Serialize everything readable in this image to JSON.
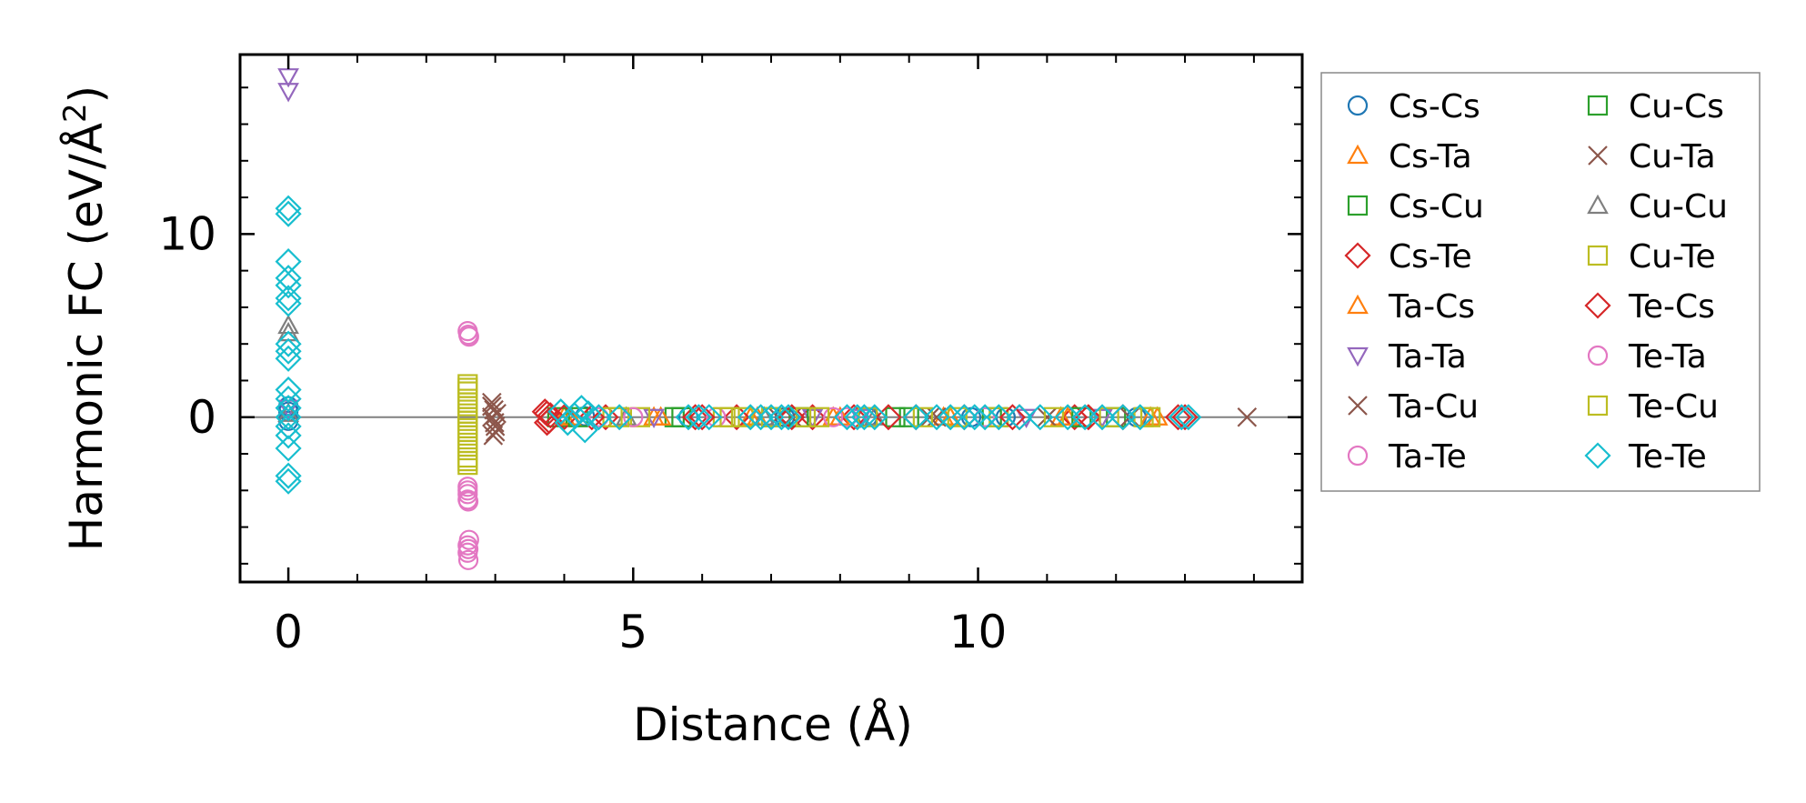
{
  "chart_data": {
    "type": "scatter",
    "xlabel": "Distance (Å)",
    "ylabel": "Harmonic FC (eV/Å²)",
    "xlim": [
      -0.7,
      14.7
    ],
    "ylim": [
      -9.0,
      19.8
    ],
    "x_ticks": [
      0,
      5,
      10
    ],
    "y_ticks": [
      0,
      10
    ],
    "x_tick_labels": [
      "0",
      "5",
      "10"
    ],
    "y_tick_labels": [
      "0",
      "10"
    ],
    "reference_line_y": 0,
    "grid": false,
    "legend": {
      "location": "outside-right",
      "columns": 2
    },
    "series": [
      {
        "name": "Cs-Cs",
        "marker": "circle",
        "color": "#1f77b4",
        "points": [
          [
            0,
            0.6
          ],
          [
            0,
            -0.2
          ],
          [
            0,
            0.3
          ],
          [
            4.3,
            0.05
          ],
          [
            5.8,
            0.0
          ],
          [
            7.2,
            0.0
          ],
          [
            8.4,
            0.0
          ],
          [
            9.9,
            0.0
          ],
          [
            10.4,
            0.0
          ],
          [
            12.3,
            0.0
          ]
        ]
      },
      {
        "name": "Cs-Ta",
        "marker": "triangle-up",
        "color": "#ff7f0e",
        "points": [
          [
            4.0,
            0.05
          ],
          [
            5.3,
            0.0
          ],
          [
            6.7,
            0.0
          ],
          [
            7.9,
            0.0
          ],
          [
            9.6,
            0.0
          ],
          [
            11.2,
            0.0
          ],
          [
            12.6,
            0.0
          ]
        ]
      },
      {
        "name": "Cs-Cu",
        "marker": "square",
        "color": "#2ca02c",
        "points": [
          [
            3.9,
            0.0
          ],
          [
            5.6,
            0.0
          ],
          [
            7.0,
            0.0
          ],
          [
            8.8,
            0.0
          ],
          [
            10.2,
            0.0
          ],
          [
            12.0,
            0.0
          ]
        ]
      },
      {
        "name": "Cs-Te",
        "marker": "diamond",
        "color": "#d62728",
        "points": [
          [
            3.72,
            0.3
          ],
          [
            3.75,
            -0.3
          ],
          [
            3.8,
            0.1
          ],
          [
            4.0,
            0.0
          ],
          [
            4.6,
            0.0
          ],
          [
            5.9,
            0.0
          ],
          [
            6.5,
            0.0
          ],
          [
            7.6,
            0.0
          ],
          [
            8.2,
            0.0
          ],
          [
            9.1,
            0.0
          ],
          [
            9.8,
            0.0
          ],
          [
            10.6,
            0.0
          ],
          [
            11.4,
            0.0
          ],
          [
            12.1,
            0.0
          ],
          [
            12.9,
            0.0
          ]
        ]
      },
      {
        "name": "Ta-Cs",
        "marker": "triangle-up",
        "color": "#ff7f0e",
        "points": [
          [
            4.1,
            0.0
          ],
          [
            5.4,
            0.0
          ],
          [
            6.8,
            0.0
          ],
          [
            8.0,
            0.0
          ],
          [
            9.5,
            0.0
          ],
          [
            11.3,
            0.0
          ],
          [
            12.5,
            0.0
          ]
        ]
      },
      {
        "name": "Ta-Ta",
        "marker": "triangle-down",
        "color": "#9467bd",
        "points": [
          [
            0,
            18.6
          ],
          [
            0,
            17.8
          ],
          [
            0,
            0.5
          ],
          [
            5.3,
            0.0
          ],
          [
            7.6,
            0.0
          ],
          [
            8.3,
            0.0
          ],
          [
            10.7,
            0.0
          ],
          [
            11.8,
            0.0
          ]
        ]
      },
      {
        "name": "Ta-Cu",
        "marker": "x",
        "color": "#8c564b",
        "points": [
          [
            2.95,
            0.8
          ],
          [
            2.98,
            0.4
          ],
          [
            2.95,
            0.0
          ],
          [
            3.0,
            -0.5
          ],
          [
            2.97,
            -1.0
          ],
          [
            3.02,
            0.2
          ],
          [
            7.1,
            0.0
          ],
          [
            9.3,
            0.0
          ],
          [
            11.0,
            0.0
          ],
          [
            13.9,
            0.0
          ]
        ]
      },
      {
        "name": "Ta-Te",
        "marker": "circle",
        "color": "#e377c2",
        "points": [
          [
            2.6,
            4.7
          ],
          [
            2.62,
            4.4
          ],
          [
            2.6,
            -3.8
          ],
          [
            2.6,
            -4.2
          ],
          [
            2.61,
            -4.6
          ],
          [
            2.62,
            -6.7
          ],
          [
            2.6,
            -7.0
          ],
          [
            2.6,
            -7.4
          ],
          [
            2.61,
            -7.8
          ],
          [
            4.5,
            0.0
          ],
          [
            6.2,
            0.0
          ],
          [
            7.9,
            0.0
          ],
          [
            10.1,
            0.0
          ]
        ]
      },
      {
        "name": "Cu-Cs",
        "marker": "square",
        "color": "#2ca02c",
        "points": [
          [
            4.2,
            0.0
          ],
          [
            5.7,
            0.0
          ],
          [
            7.4,
            0.0
          ],
          [
            9.0,
            0.0
          ],
          [
            11.5,
            0.0
          ]
        ]
      },
      {
        "name": "Cu-Ta",
        "marker": "x",
        "color": "#8c564b",
        "points": [
          [
            2.95,
            0.6
          ],
          [
            2.99,
            -0.3
          ],
          [
            3.0,
            -0.8
          ],
          [
            7.3,
            0.0
          ],
          [
            9.4,
            0.0
          ],
          [
            12.2,
            0.0
          ]
        ]
      },
      {
        "name": "Cu-Cu",
        "marker": "triangle-up",
        "color": "#7f7f7f",
        "points": [
          [
            0,
            5.0
          ],
          [
            0,
            4.6
          ],
          [
            0,
            0.2
          ],
          [
            4.9,
            0.0
          ],
          [
            6.9,
            0.0
          ],
          [
            8.5,
            0.0
          ]
        ]
      },
      {
        "name": "Cu-Te",
        "marker": "square",
        "color": "#bcbd22",
        "points": [
          [
            2.6,
            1.8
          ],
          [
            2.6,
            1.4
          ],
          [
            2.6,
            1.0
          ],
          [
            2.6,
            0.6
          ],
          [
            2.6,
            0.2
          ],
          [
            2.6,
            -0.2
          ],
          [
            2.6,
            -0.6
          ],
          [
            2.6,
            -1.0
          ],
          [
            2.6,
            -1.4
          ],
          [
            2.6,
            -1.8
          ],
          [
            2.6,
            -2.2
          ],
          [
            2.6,
            -2.6
          ],
          [
            4.7,
            0.0
          ],
          [
            5.1,
            0.0
          ],
          [
            6.3,
            0.0
          ],
          [
            6.6,
            0.0
          ],
          [
            7.0,
            0.0
          ],
          [
            7.7,
            0.0
          ],
          [
            8.4,
            0.0
          ],
          [
            9.2,
            0.0
          ],
          [
            10.3,
            0.0
          ],
          [
            11.1,
            0.0
          ],
          [
            12.4,
            0.0
          ],
          [
            12.5,
            0.0
          ]
        ]
      },
      {
        "name": "Te-Cs",
        "marker": "diamond",
        "color": "#d62728",
        "points": [
          [
            3.75,
            0.2
          ],
          [
            3.78,
            -0.2
          ],
          [
            4.4,
            0.0
          ],
          [
            6.0,
            0.0
          ],
          [
            7.3,
            0.0
          ],
          [
            8.7,
            0.0
          ],
          [
            10.5,
            0.0
          ],
          [
            11.6,
            0.0
          ],
          [
            13.0,
            0.0
          ]
        ]
      },
      {
        "name": "Te-Ta",
        "marker": "circle",
        "color": "#e377c2",
        "points": [
          [
            2.61,
            4.5
          ],
          [
            2.6,
            -4.0
          ],
          [
            2.6,
            -4.5
          ],
          [
            2.61,
            -7.2
          ],
          [
            5.0,
            0.0
          ],
          [
            8.1,
            0.0
          ]
        ]
      },
      {
        "name": "Te-Cu",
        "marker": "square",
        "color": "#bcbd22",
        "points": [
          [
            2.6,
            1.6
          ],
          [
            2.6,
            0.8
          ],
          [
            2.6,
            0.0
          ],
          [
            2.6,
            -0.8
          ],
          [
            2.6,
            -1.6
          ],
          [
            2.6,
            -2.4
          ],
          [
            4.8,
            0.0
          ],
          [
            6.4,
            0.0
          ],
          [
            7.5,
            0.0
          ],
          [
            9.7,
            0.0
          ],
          [
            11.9,
            0.0
          ]
        ]
      },
      {
        "name": "Te-Te",
        "marker": "diamond",
        "color": "#17becf",
        "points": [
          [
            0,
            11.4
          ],
          [
            0,
            11.1
          ],
          [
            0,
            8.5
          ],
          [
            0,
            7.6
          ],
          [
            0,
            7.2
          ],
          [
            0,
            6.5
          ],
          [
            0,
            6.2
          ],
          [
            0,
            4.0
          ],
          [
            0,
            3.6
          ],
          [
            0,
            3.2
          ],
          [
            0,
            1.5
          ],
          [
            0,
            1.0
          ],
          [
            0,
            0.5
          ],
          [
            0,
            0.0
          ],
          [
            0,
            -0.5
          ],
          [
            0,
            -1.0
          ],
          [
            0,
            -1.7
          ],
          [
            0,
            -3.2
          ],
          [
            0,
            -3.5
          ],
          [
            3.95,
            0.3
          ],
          [
            4.05,
            -0.3
          ],
          [
            4.15,
            0.1
          ],
          [
            4.25,
            0.5
          ],
          [
            4.3,
            -0.7
          ],
          [
            4.35,
            0.2
          ],
          [
            4.5,
            0.0
          ],
          [
            4.8,
            0.0
          ],
          [
            5.8,
            0.0
          ],
          [
            5.95,
            0.0
          ],
          [
            6.1,
            0.0
          ],
          [
            6.7,
            0.0
          ],
          [
            6.85,
            0.0
          ],
          [
            7.0,
            0.0
          ],
          [
            7.15,
            0.0
          ],
          [
            7.25,
            0.0
          ],
          [
            8.1,
            0.0
          ],
          [
            8.25,
            0.0
          ],
          [
            8.35,
            0.0
          ],
          [
            8.5,
            0.0
          ],
          [
            9.1,
            0.0
          ],
          [
            9.4,
            0.0
          ],
          [
            9.6,
            0.0
          ],
          [
            9.8,
            0.0
          ],
          [
            9.95,
            0.0
          ],
          [
            10.1,
            0.0
          ],
          [
            10.3,
            0.0
          ],
          [
            10.6,
            0.0
          ],
          [
            10.9,
            0.0
          ],
          [
            11.3,
            0.0
          ],
          [
            11.55,
            0.0
          ],
          [
            11.8,
            0.0
          ],
          [
            12.1,
            0.0
          ],
          [
            12.35,
            0.0
          ],
          [
            12.95,
            0.0
          ],
          [
            13.05,
            0.0
          ]
        ]
      }
    ]
  }
}
